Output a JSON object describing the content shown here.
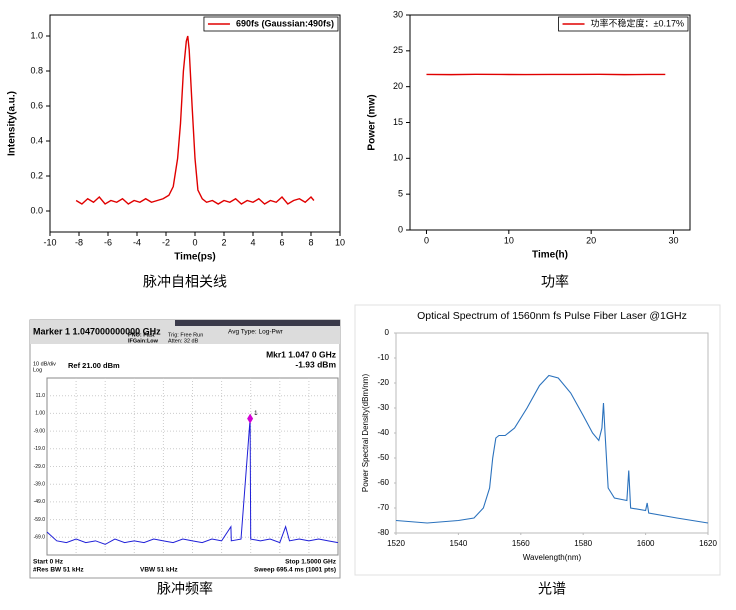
{
  "chart_data": [
    {
      "type": "line",
      "caption": "脉冲自相关线",
      "xlabel": "Time(ps)",
      "ylabel": "Intensity(a.u.)",
      "x": [
        -8.2,
        -7.8,
        -7.4,
        -7.0,
        -6.6,
        -6.2,
        -5.8,
        -5.4,
        -5.0,
        -4.6,
        -4.2,
        -3.8,
        -3.4,
        -3.0,
        -2.6,
        -2.2,
        -1.8,
        -1.5,
        -1.2,
        -1.0,
        -0.8,
        -0.6,
        -0.5,
        -0.4,
        -0.2,
        0.0,
        0.2,
        0.5,
        0.8,
        1.2,
        1.6,
        2.0,
        2.4,
        2.8,
        3.2,
        3.6,
        4.0,
        4.4,
        4.8,
        5.2,
        5.6,
        6.0,
        6.4,
        6.8,
        7.2,
        7.6,
        8.0,
        8.2
      ],
      "series": [
        {
          "name": "690fs (Gaussian:490fs)",
          "color": "#e00000",
          "values": [
            0.06,
            0.04,
            0.07,
            0.05,
            0.08,
            0.04,
            0.06,
            0.05,
            0.07,
            0.04,
            0.06,
            0.05,
            0.07,
            0.05,
            0.06,
            0.07,
            0.09,
            0.14,
            0.3,
            0.5,
            0.8,
            0.97,
            1.0,
            0.92,
            0.6,
            0.3,
            0.12,
            0.07,
            0.05,
            0.06,
            0.04,
            0.06,
            0.05,
            0.07,
            0.04,
            0.06,
            0.05,
            0.07,
            0.04,
            0.06,
            0.05,
            0.08,
            0.04,
            0.06,
            0.07,
            0.05,
            0.08,
            0.06
          ]
        }
      ],
      "xlim": [
        -10,
        10
      ],
      "xticks": [
        -10,
        -8,
        -6,
        -4,
        -2,
        0,
        2,
        4,
        6,
        8,
        10
      ],
      "ylim": [
        -0.12,
        1.12
      ],
      "yticks": [
        {
          "value": 0,
          "label": "0.0"
        },
        0.2,
        0.4,
        0.6,
        0.8,
        {
          "value": 1,
          "label": "1.0"
        }
      ],
      "legend": "upper right",
      "grid": false
    },
    {
      "type": "line",
      "caption": "功率",
      "xlabel": "Time(h)",
      "ylabel": "Power (mw)",
      "x": [
        0,
        3,
        6,
        9,
        12,
        15,
        18,
        21,
        24,
        27,
        29
      ],
      "series": [
        {
          "name": "功率不稳定度：±0.17%",
          "color": "#e00000",
          "values": [
            21.7,
            21.68,
            21.72,
            21.7,
            21.69,
            21.71,
            21.7,
            21.72,
            21.68,
            21.7,
            21.71
          ]
        }
      ],
      "xlim": [
        -2,
        32
      ],
      "xticks": [
        0,
        10,
        20,
        30
      ],
      "ylim": [
        0,
        30
      ],
      "yticks": [
        0,
        5,
        10,
        15,
        20,
        25,
        30
      ],
      "legend": "upper right",
      "grid": false
    },
    {
      "type": "spectrum",
      "caption": "脉冲频率",
      "annotations": [
        "Marker 1 1.047000000000 GHz",
        "PNO: Fast",
        "IFGain:Low",
        "Trig: Free Run",
        "Atten: 32 dB",
        "Avg Type: Log-Pwr",
        "10 dB/div",
        "Log",
        "Ref 21.00 dBm",
        "Mkr1 1.047 0 GHz",
        "-1.93 dBm",
        "Start 0 Hz",
        "#Res BW 51 kHz",
        "VBW 51 kHz",
        "Stop 1.5000 GHz",
        "Sweep  695.4 ms (1001 pts)"
      ],
      "marker_label": "1",
      "x": [
        0,
        0.05,
        0.1,
        0.15,
        0.2,
        0.25,
        0.3,
        0.35,
        0.4,
        0.45,
        0.5,
        0.55,
        0.6,
        0.65,
        0.7,
        0.75,
        0.8,
        0.85,
        0.9,
        0.948,
        0.95,
        1.0,
        1.047,
        1.05,
        1.1,
        1.15,
        1.2,
        1.23,
        1.25,
        1.3,
        1.35,
        1.4,
        1.45,
        1.5
      ],
      "values": [
        -66,
        -71,
        -72,
        -70,
        -72,
        -71,
        -73,
        -70,
        -72,
        -71,
        -72,
        -70,
        -71,
        -72,
        -70,
        -71,
        -72,
        -70,
        -71,
        -63,
        -71,
        -70,
        -1.93,
        -70,
        -71,
        -70,
        -72,
        -63,
        -71,
        -70,
        -71,
        -70,
        -71,
        -72
      ],
      "color": "#1f1fd8",
      "xlim": [
        0,
        1.5
      ],
      "ylim": [
        -79,
        21
      ],
      "yticks": [
        {
          "value": 11,
          "label": "11.0"
        },
        {
          "value": 1,
          "label": "1.00"
        },
        {
          "value": -9,
          "label": "-9.00"
        },
        {
          "value": -19,
          "label": "-19.0"
        },
        {
          "value": -29,
          "label": "-29.0"
        },
        {
          "value": -39,
          "label": "-39.0"
        },
        {
          "value": -49,
          "label": "-49.0"
        },
        {
          "value": -59,
          "label": "-59.0"
        },
        {
          "value": -69,
          "label": "-69.0"
        }
      ],
      "grid": true
    },
    {
      "type": "line",
      "caption": "光谱",
      "title": "Optical Spectrum of 1560nm fs Pulse Fiber Laser @1GHz",
      "xlabel": "Wavelength(nm)",
      "ylabel": "Power Spectral Density(dBm/nm)",
      "x": [
        1520,
        1530,
        1540,
        1545,
        1548,
        1550,
        1551,
        1552,
        1553,
        1555,
        1558,
        1562,
        1566,
        1569,
        1572,
        1576,
        1580,
        1583,
        1585,
        1586,
        1586.5,
        1587,
        1588,
        1590,
        1594,
        1594.6,
        1595.2,
        1600,
        1600.5,
        1601,
        1610,
        1620
      ],
      "values": [
        -75,
        -76,
        -75,
        -74,
        -70,
        -62,
        -50,
        -42,
        -41,
        -41,
        -38,
        -30,
        -21,
        -17,
        -18,
        -24,
        -33,
        -40,
        -43,
        -38,
        -28,
        -40,
        -62,
        -66,
        -67,
        -55,
        -70,
        -71,
        -68,
        -72,
        -74,
        -76
      ],
      "color": "#2b72bd",
      "xlim": [
        1520,
        1620
      ],
      "xticks": [
        1520,
        1540,
        1560,
        1580,
        1600,
        1620
      ],
      "ylim": [
        -80,
        0
      ],
      "yticks": [
        -80,
        -70,
        -60,
        -50,
        -40,
        -30,
        -20,
        -10,
        0
      ],
      "grid": false
    }
  ]
}
